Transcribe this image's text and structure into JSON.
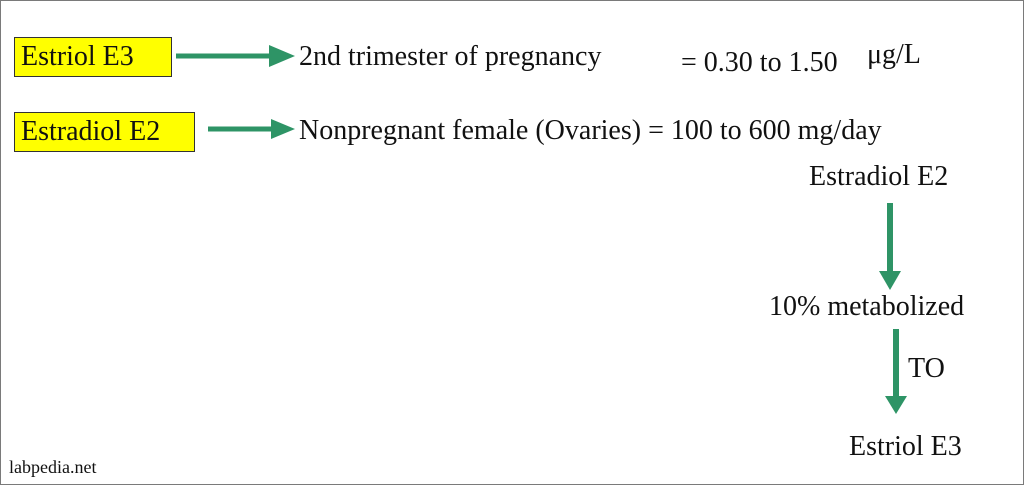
{
  "colors": {
    "arrow": "#2e9466",
    "highlight": "#ffff00"
  },
  "rows": [
    {
      "label": "Estriol E3",
      "description": "2nd trimester of pregnancy",
      "value": "= 0.30 to 1.50",
      "unit": "μg/L"
    },
    {
      "label": "Estradiol E2",
      "description": "Nonpregnant female  (Ovaries) = 100 to 600 mg/day"
    }
  ],
  "flow": {
    "start": "Estradiol E2",
    "middle": "10% metabolized",
    "connector": "TO",
    "end": "Estriol E3"
  },
  "watermark": "labpedia.net"
}
